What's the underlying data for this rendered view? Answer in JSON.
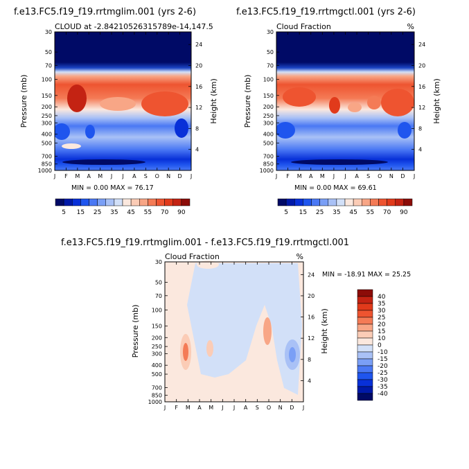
{
  "chart_data": [
    {
      "type": "heatmap",
      "title": "f.e13.FC5.f19_f19.rrtmglim.001 (yrs 2-6)",
      "subtitle_left": "CLOUD at -2.84210526315789e-14,147.5",
      "subtitle_right": "",
      "xlabel": "",
      "ylabel": "Pressure (mb)",
      "ylabel_right": "Height (km)",
      "x_ticks": [
        "J",
        "F",
        "M",
        "A",
        "M",
        "J",
        "J",
        "A",
        "S",
        "O",
        "N",
        "D",
        "J"
      ],
      "y_ticks_left": [
        "30",
        "50",
        "70",
        "100",
        "150",
        "200",
        "250",
        "300",
        "400",
        "500",
        "700",
        "850",
        "1000"
      ],
      "y_ticks_right": [
        "24",
        "20",
        "16",
        "12",
        "8",
        "4"
      ],
      "stats": "MIN =    0.00 MAX =   76.17",
      "min": 0.0,
      "max": 76.17
    },
    {
      "type": "heatmap",
      "title": "f.e13.FC5.f19_f19.rrtmgctl.001 (yrs 2-6)",
      "subtitle_left": "Cloud Fraction",
      "subtitle_right": "%",
      "xlabel": "",
      "ylabel": "Pressure (mb)",
      "ylabel_right": "Height (km)",
      "x_ticks": [
        "J",
        "F",
        "M",
        "A",
        "M",
        "J",
        "J",
        "A",
        "S",
        "O",
        "N",
        "D",
        "J"
      ],
      "y_ticks_left": [
        "30",
        "50",
        "70",
        "100",
        "150",
        "200",
        "250",
        "300",
        "400",
        "500",
        "700",
        "850",
        "1000"
      ],
      "y_ticks_right": [
        "24",
        "20",
        "16",
        "12",
        "8",
        "4"
      ],
      "stats": "MIN =    0.00 MAX =   69.61",
      "min": 0.0,
      "max": 69.61
    },
    {
      "type": "heatmap",
      "title": "f.e13.FC5.f19_f19.rrtmglim.001 - f.e13.FC5.f19_f19.rrtmgctl.001",
      "subtitle_left": "Cloud Fraction",
      "subtitle_right": "%",
      "xlabel": "",
      "ylabel": "Pressure (mb)",
      "ylabel_right": "Height (km)",
      "x_ticks": [
        "J",
        "F",
        "M",
        "A",
        "M",
        "J",
        "J",
        "A",
        "S",
        "O",
        "N",
        "D",
        "J"
      ],
      "y_ticks_left": [
        "30",
        "50",
        "70",
        "100",
        "150",
        "200",
        "250",
        "300",
        "400",
        "500",
        "700",
        "850",
        "1000"
      ],
      "y_ticks_right": [
        "24",
        "20",
        "16",
        "12",
        "8",
        "4"
      ],
      "stats": "MIN =  -18.91 MAX =   25.25",
      "min": -18.91,
      "max": 25.25
    }
  ],
  "colorbar_abs": {
    "labels": [
      "5",
      "15",
      "25",
      "35",
      "45",
      "55",
      "70",
      "90"
    ],
    "colors": [
      "#000a66",
      "#0019a8",
      "#0830d8",
      "#1f55ee",
      "#4a78f4",
      "#7a9ff6",
      "#a9c1f6",
      "#d2e0f8",
      "#fbe8de",
      "#fbccb6",
      "#f8a686",
      "#f47b56",
      "#ee5430",
      "#e13a1b",
      "#c42313",
      "#8c0c08"
    ]
  },
  "colorbar_diff": {
    "labels": [
      "40",
      "35",
      "30",
      "25",
      "20",
      "15",
      "10",
      "0",
      "-10",
      "-15",
      "-20",
      "-25",
      "-30",
      "-35",
      "-40"
    ],
    "colors": [
      "#8c0c08",
      "#c42313",
      "#e13a1b",
      "#ee5430",
      "#f47b56",
      "#f8a686",
      "#fbccb6",
      "#fbe8de",
      "#d2e0f8",
      "#a9c1f6",
      "#7a9ff6",
      "#4a78f4",
      "#1f55ee",
      "#0830d8",
      "#0019a8",
      "#000a66"
    ]
  }
}
